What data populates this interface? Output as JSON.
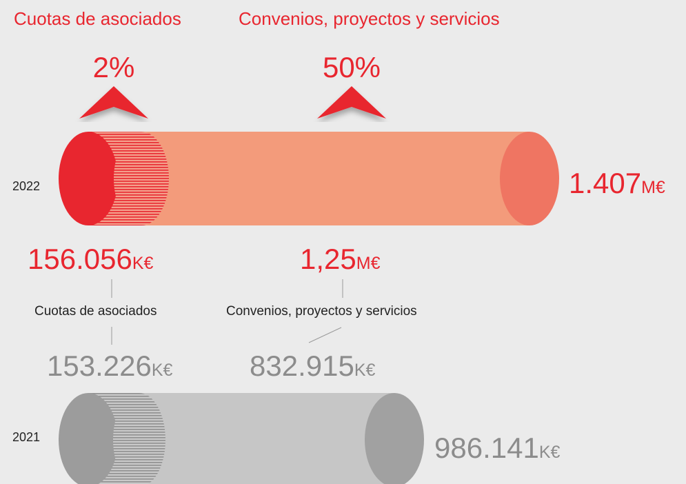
{
  "headings": [
    "Cuotas de asociados",
    "Convenios, proyectos y servicios"
  ],
  "growth": [
    "2%",
    "50%"
  ],
  "y2022": {
    "year": "2022",
    "total": {
      "value": "1.407",
      "unit": "M€"
    },
    "items": [
      {
        "value": "156.056",
        "unit": "K€"
      },
      {
        "value": "1,25",
        "unit": "M€"
      }
    ]
  },
  "labels": [
    "Cuotas de asociados",
    "Convenios, proyectos y servicios"
  ],
  "y2021": {
    "year": "2021",
    "total": {
      "value": "986.141",
      "unit": "K€"
    },
    "items": [
      {
        "value": "153.226",
        "unit": "K€"
      },
      {
        "value": "832.915",
        "unit": "K€"
      }
    ]
  }
}
